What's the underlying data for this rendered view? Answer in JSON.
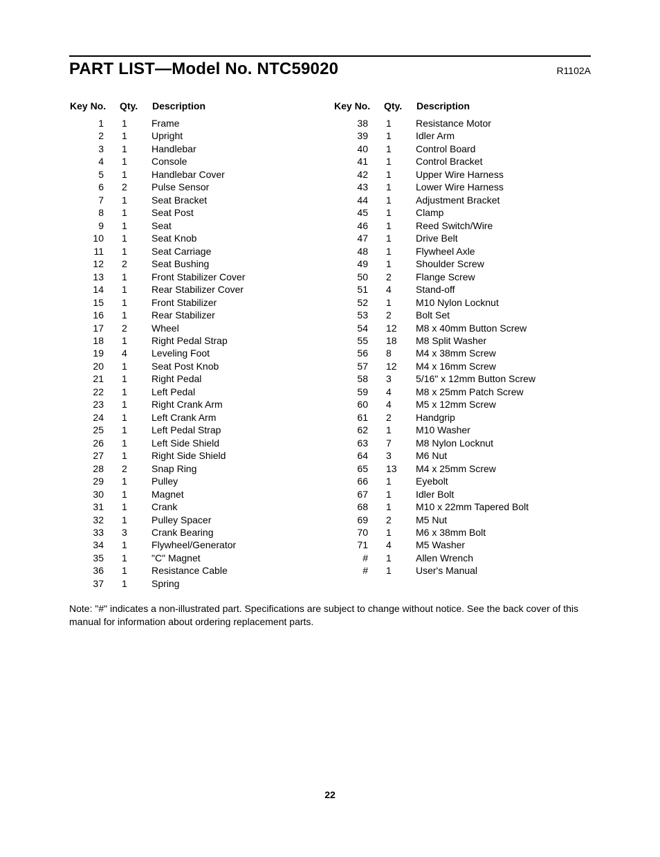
{
  "title": "PART LIST—Model No. NTC59020",
  "revision": "R1102A",
  "headers": {
    "keyno": "Key No.",
    "qty": "Qty.",
    "desc": "Description"
  },
  "left_rows": [
    {
      "key": "1",
      "qty": "1",
      "desc": "Frame"
    },
    {
      "key": "2",
      "qty": "1",
      "desc": "Upright"
    },
    {
      "key": "3",
      "qty": "1",
      "desc": "Handlebar"
    },
    {
      "key": "4",
      "qty": "1",
      "desc": "Console"
    },
    {
      "key": "5",
      "qty": "1",
      "desc": "Handlebar Cover"
    },
    {
      "key": "6",
      "qty": "2",
      "desc": "Pulse Sensor"
    },
    {
      "key": "7",
      "qty": "1",
      "desc": "Seat Bracket"
    },
    {
      "key": "8",
      "qty": "1",
      "desc": "Seat Post"
    },
    {
      "key": "9",
      "qty": "1",
      "desc": "Seat"
    },
    {
      "key": "10",
      "qty": "1",
      "desc": "Seat Knob"
    },
    {
      "key": "11",
      "qty": "1",
      "desc": "Seat Carriage"
    },
    {
      "key": "12",
      "qty": "2",
      "desc": "Seat Bushing"
    },
    {
      "key": "13",
      "qty": "1",
      "desc": "Front Stabilizer Cover"
    },
    {
      "key": "14",
      "qty": "1",
      "desc": "Rear Stabilizer Cover"
    },
    {
      "key": "15",
      "qty": "1",
      "desc": "Front Stabilizer"
    },
    {
      "key": "16",
      "qty": "1",
      "desc": "Rear Stabilizer"
    },
    {
      "key": "17",
      "qty": "2",
      "desc": "Wheel"
    },
    {
      "key": "18",
      "qty": "1",
      "desc": "Right Pedal Strap"
    },
    {
      "key": "19",
      "qty": "4",
      "desc": "Leveling Foot"
    },
    {
      "key": "20",
      "qty": "1",
      "desc": "Seat Post Knob"
    },
    {
      "key": "21",
      "qty": "1",
      "desc": "Right Pedal"
    },
    {
      "key": "22",
      "qty": "1",
      "desc": "Left Pedal"
    },
    {
      "key": "23",
      "qty": "1",
      "desc": "Right Crank Arm"
    },
    {
      "key": "24",
      "qty": "1",
      "desc": "Left Crank Arm"
    },
    {
      "key": "25",
      "qty": "1",
      "desc": "Left Pedal Strap"
    },
    {
      "key": "26",
      "qty": "1",
      "desc": "Left Side Shield"
    },
    {
      "key": "27",
      "qty": "1",
      "desc": "Right Side Shield"
    },
    {
      "key": "28",
      "qty": "2",
      "desc": "Snap Ring"
    },
    {
      "key": "29",
      "qty": "1",
      "desc": "Pulley"
    },
    {
      "key": "30",
      "qty": "1",
      "desc": "Magnet"
    },
    {
      "key": "31",
      "qty": "1",
      "desc": "Crank"
    },
    {
      "key": "32",
      "qty": "1",
      "desc": "Pulley Spacer"
    },
    {
      "key": "33",
      "qty": "3",
      "desc": "Crank Bearing"
    },
    {
      "key": "34",
      "qty": "1",
      "desc": "Flywheel/Generator"
    },
    {
      "key": "35",
      "qty": "1",
      "desc": "\"C\" Magnet"
    },
    {
      "key": "36",
      "qty": "1",
      "desc": "Resistance Cable"
    },
    {
      "key": "37",
      "qty": "1",
      "desc": "Spring"
    }
  ],
  "right_rows": [
    {
      "key": "38",
      "qty": "1",
      "desc": "Resistance Motor"
    },
    {
      "key": "39",
      "qty": "1",
      "desc": "Idler Arm"
    },
    {
      "key": "40",
      "qty": "1",
      "desc": "Control Board"
    },
    {
      "key": "41",
      "qty": "1",
      "desc": "Control Bracket"
    },
    {
      "key": "42",
      "qty": "1",
      "desc": "Upper Wire Harness"
    },
    {
      "key": "43",
      "qty": "1",
      "desc": "Lower Wire Harness"
    },
    {
      "key": "44",
      "qty": "1",
      "desc": "Adjustment Bracket"
    },
    {
      "key": "45",
      "qty": "1",
      "desc": "Clamp"
    },
    {
      "key": "46",
      "qty": "1",
      "desc": "Reed Switch/Wire"
    },
    {
      "key": "47",
      "qty": "1",
      "desc": "Drive Belt"
    },
    {
      "key": "48",
      "qty": "1",
      "desc": "Flywheel Axle"
    },
    {
      "key": "49",
      "qty": "1",
      "desc": "Shoulder Screw"
    },
    {
      "key": "50",
      "qty": "2",
      "desc": "Flange Screw"
    },
    {
      "key": "51",
      "qty": "4",
      "desc": "Stand-off"
    },
    {
      "key": "52",
      "qty": "1",
      "desc": "M10 Nylon Locknut"
    },
    {
      "key": "53",
      "qty": "2",
      "desc": "Bolt Set"
    },
    {
      "key": "54",
      "qty": "12",
      "desc": "M8 x 40mm Button Screw"
    },
    {
      "key": "55",
      "qty": "18",
      "desc": "M8 Split Washer"
    },
    {
      "key": "56",
      "qty": "8",
      "desc": "M4 x 38mm Screw"
    },
    {
      "key": "57",
      "qty": "12",
      "desc": "M4 x 16mm Screw"
    },
    {
      "key": "58",
      "qty": "3",
      "desc": "5/16\" x 12mm Button Screw"
    },
    {
      "key": "59",
      "qty": "4",
      "desc": "M8 x 25mm Patch Screw"
    },
    {
      "key": "60",
      "qty": "4",
      "desc": "M5 x 12mm Screw"
    },
    {
      "key": "61",
      "qty": "2",
      "desc": "Handgrip"
    },
    {
      "key": "62",
      "qty": "1",
      "desc": "M10 Washer"
    },
    {
      "key": "63",
      "qty": "7",
      "desc": "M8 Nylon Locknut"
    },
    {
      "key": "64",
      "qty": "3",
      "desc": "M6 Nut"
    },
    {
      "key": "65",
      "qty": "13",
      "desc": "M4 x 25mm Screw"
    },
    {
      "key": "66",
      "qty": "1",
      "desc": "Eyebolt"
    },
    {
      "key": "67",
      "qty": "1",
      "desc": "Idler Bolt"
    },
    {
      "key": "68",
      "qty": "1",
      "desc": "M10 x 22mm Tapered Bolt"
    },
    {
      "key": "69",
      "qty": "2",
      "desc": "M5 Nut"
    },
    {
      "key": "70",
      "qty": "1",
      "desc": "M6 x 38mm Bolt"
    },
    {
      "key": "71",
      "qty": "4",
      "desc": "M5 Washer"
    },
    {
      "key": "#",
      "qty": "1",
      "desc": "Allen Wrench"
    },
    {
      "key": "#",
      "qty": "1",
      "desc": "User's Manual"
    }
  ],
  "note": "Note: \"#\" indicates a non-illustrated part. Specifications are subject to change without notice. See the back cover of this manual for information about ordering replacement parts.",
  "page_number": "22"
}
